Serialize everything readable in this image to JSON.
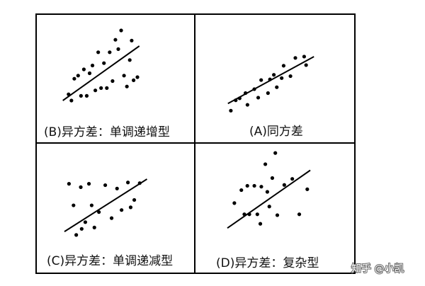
{
  "chart_data": [
    {
      "type": "scatter",
      "caption": "(B)异方差：单调递增型",
      "xlim": [
        0,
        1
      ],
      "ylim": [
        0,
        1
      ],
      "points": [
        [
          0.08,
          0.18
        ],
        [
          0.11,
          0.1
        ],
        [
          0.14,
          0.38
        ],
        [
          0.18,
          0.42
        ],
        [
          0.21,
          0.16
        ],
        [
          0.24,
          0.5
        ],
        [
          0.27,
          0.16
        ],
        [
          0.3,
          0.45
        ],
        [
          0.33,
          0.55
        ],
        [
          0.36,
          0.23
        ],
        [
          0.39,
          0.72
        ],
        [
          0.42,
          0.26
        ],
        [
          0.45,
          0.58
        ],
        [
          0.48,
          0.26
        ],
        [
          0.51,
          0.72
        ],
        [
          0.54,
          0.35
        ],
        [
          0.57,
          0.88
        ],
        [
          0.6,
          0.76
        ],
        [
          0.63,
          1.0
        ],
        [
          0.66,
          0.42
        ],
        [
          0.69,
          0.28
        ],
        [
          0.72,
          0.62
        ],
        [
          0.74,
          0.87
        ],
        [
          0.76,
          0.36
        ],
        [
          0.8,
          0.4
        ]
      ],
      "trendline": {
        "x": [
          0.02,
          0.82
        ],
        "y": [
          0.1,
          0.8
        ]
      }
    },
    {
      "type": "scatter",
      "caption": "(A)同方差",
      "xlim": [
        0,
        1
      ],
      "ylim": [
        0,
        1
      ],
      "points": [
        [
          0.05,
          0.04
        ],
        [
          0.1,
          0.2
        ],
        [
          0.14,
          0.23
        ],
        [
          0.2,
          0.31
        ],
        [
          0.22,
          0.13
        ],
        [
          0.29,
          0.37
        ],
        [
          0.33,
          0.24
        ],
        [
          0.36,
          0.51
        ],
        [
          0.43,
          0.31
        ],
        [
          0.45,
          0.52
        ],
        [
          0.49,
          0.59
        ],
        [
          0.52,
          0.4
        ],
        [
          0.57,
          0.54
        ],
        [
          0.59,
          0.73
        ],
        [
          0.66,
          0.57
        ],
        [
          0.71,
          0.85
        ],
        [
          0.8,
          0.87
        ],
        [
          0.82,
          0.74
        ]
      ],
      "trendline": {
        "x": [
          0.02,
          0.9
        ],
        "y": [
          0.15,
          0.87
        ]
      }
    },
    {
      "type": "scatter",
      "caption": "(C)异方差：单调递减型",
      "xlim": [
        0,
        1
      ],
      "ylim": [
        0,
        1
      ],
      "points": [
        [
          0.05,
          0.93
        ],
        [
          0.1,
          0.61
        ],
        [
          0.13,
          0.17
        ],
        [
          0.18,
          0.88
        ],
        [
          0.19,
          0.26
        ],
        [
          0.23,
          0.36
        ],
        [
          0.27,
          0.93
        ],
        [
          0.3,
          0.61
        ],
        [
          0.33,
          0.28
        ],
        [
          0.38,
          0.51
        ],
        [
          0.45,
          0.91
        ],
        [
          0.52,
          0.42
        ],
        [
          0.58,
          0.86
        ],
        [
          0.63,
          0.54
        ],
        [
          0.7,
          0.95
        ],
        [
          0.73,
          0.58
        ],
        [
          0.77,
          0.69
        ],
        [
          0.83,
          0.94
        ]
      ],
      "trendline": {
        "x": [
          0.0,
          0.91
        ],
        "y": [
          0.22,
          1.0
        ]
      }
    },
    {
      "type": "scatter",
      "caption": "(D)异方差：复杂型",
      "xlim": [
        0,
        1
      ],
      "ylim": [
        0,
        1
      ],
      "points": [
        [
          0.07,
          0.37
        ],
        [
          0.14,
          0.52
        ],
        [
          0.17,
          0.24
        ],
        [
          0.2,
          0.57
        ],
        [
          0.22,
          0.24
        ],
        [
          0.27,
          0.57
        ],
        [
          0.3,
          0.24
        ],
        [
          0.33,
          0.13
        ],
        [
          0.34,
          0.56
        ],
        [
          0.38,
          0.82
        ],
        [
          0.4,
          0.5
        ],
        [
          0.42,
          0.33
        ],
        [
          0.45,
          0.66
        ],
        [
          0.48,
          0.95
        ],
        [
          0.5,
          0.23
        ],
        [
          0.57,
          0.58
        ],
        [
          0.65,
          0.65
        ],
        [
          0.72,
          0.24
        ],
        [
          0.8,
          0.53
        ]
      ],
      "trendline": {
        "x": [
          0.0,
          0.83
        ],
        "y": [
          0.08,
          0.75
        ]
      }
    }
  ],
  "watermark": "知乎 @小凯"
}
